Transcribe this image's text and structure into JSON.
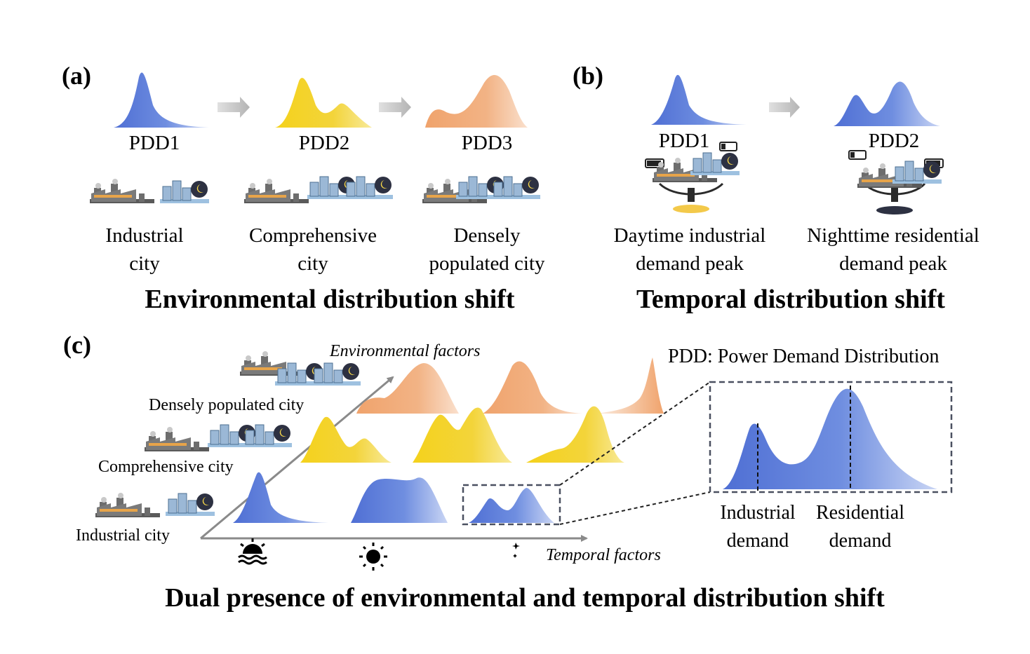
{
  "panel_a": {
    "tag": "(a)",
    "pdd": [
      "PDD1",
      "PDD2",
      "PDD3"
    ],
    "cities": [
      {
        "line1": "Industrial",
        "line2": "city"
      },
      {
        "line1": "Comprehensive",
        "line2": "city"
      },
      {
        "line1": "Densely",
        "line2": "populated city"
      }
    ],
    "title": "Environmental distribution shift"
  },
  "panel_b": {
    "tag": "(b)",
    "pdd": [
      "PDD1",
      "PDD2"
    ],
    "peaks": [
      {
        "line1": "Daytime industrial",
        "line2": "demand peak"
      },
      {
        "line1": "Nighttime residential",
        "line2": "demand peak"
      }
    ],
    "title": "Temporal distribution shift"
  },
  "panel_c": {
    "tag": "(c)",
    "env_axis": "Environmental factors",
    "time_axis": "Temporal factors",
    "cities": [
      "Densely populated city",
      "Comprehensive city",
      "Industrial city"
    ],
    "legend": "PDD: Power Demand Distribution",
    "zoom_labels": [
      {
        "line1": "Industrial",
        "line2": "demand"
      },
      {
        "line1": "Residential",
        "line2": "demand"
      }
    ],
    "title": "Dual presence of environmental and temporal distribution shift"
  },
  "icons": [
    "factory-icon",
    "city-night-icon",
    "sunrise-icon",
    "sun-icon",
    "moon-icon",
    "battery-icon",
    "scale-icon",
    "arrow-icon"
  ],
  "colors": {
    "blue": "#5a78d6",
    "yellow": "#f2cf2a",
    "orange": "#eeab78",
    "arrow_gray": "#c4c4c4",
    "axis_gray": "#8a8a8a",
    "dash_gray": "#4a5060"
  }
}
